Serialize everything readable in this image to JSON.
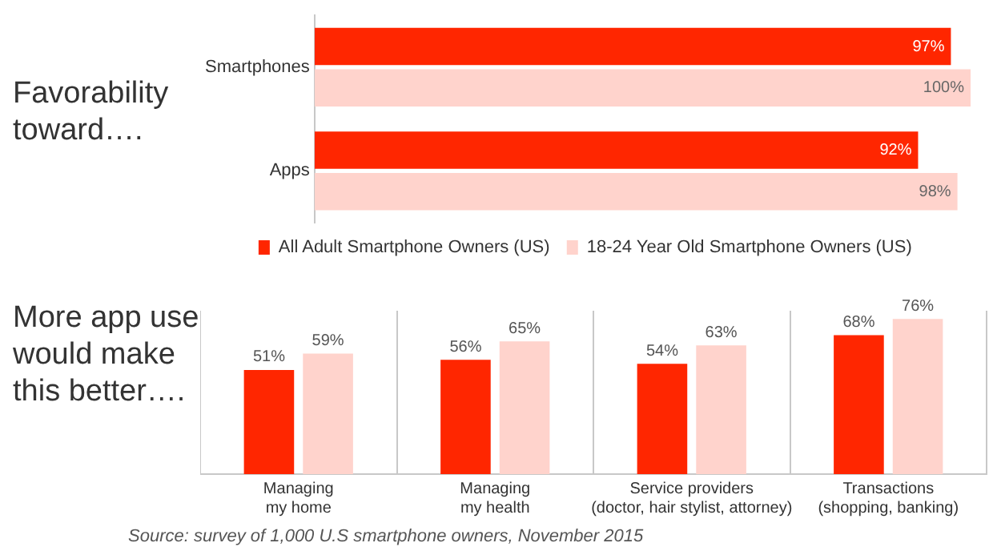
{
  "chart_data": [
    {
      "type": "bar",
      "orientation": "horizontal",
      "title": "Favorability toward….",
      "categories": [
        "Smartphones",
        "Apps"
      ],
      "series": [
        {
          "name": "All Adult Smartphone Owners (US)",
          "color": "#ff2600",
          "values": [
            97,
            92
          ],
          "value_labels": [
            "97%",
            "92%"
          ]
        },
        {
          "name": "18-24 Year Old Smartphone Owners (US)",
          "color": "#ffd3cc",
          "values": [
            100,
            98
          ],
          "value_labels": [
            "100%",
            "98%"
          ]
        }
      ],
      "legend": "bottom"
    },
    {
      "type": "bar",
      "title": "More app use would make this better….",
      "categories": [
        "Managing\nmy home",
        "Managing\nmy health",
        "Service providers\n(doctor, hair stylist, attorney)",
        "Transactions\n(shopping, banking)"
      ],
      "series": [
        {
          "color": "#ff2600",
          "values": [
            51,
            56,
            54,
            68
          ],
          "value_labels": [
            "51%",
            "56%",
            "54%",
            "68%"
          ]
        },
        {
          "color": "#ffd3cc",
          "values": [
            59,
            65,
            63,
            76
          ],
          "value_labels": [
            "59%",
            "65%",
            "63%",
            "76%"
          ]
        }
      ],
      "annotations": [
        "Source: survey of 1,000 U.S smartphone owners, November 2015"
      ]
    }
  ]
}
